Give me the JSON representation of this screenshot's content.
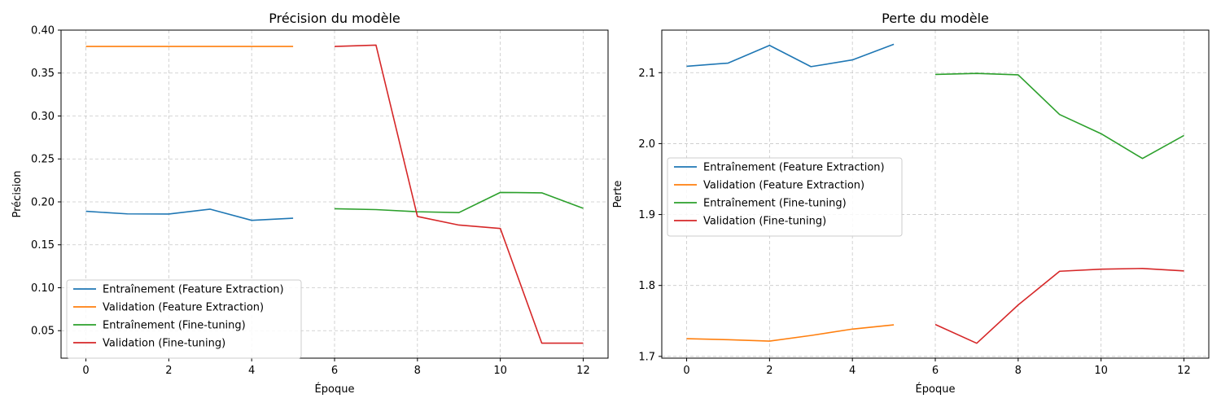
{
  "chart_data": [
    {
      "type": "line",
      "title": "Précision du modèle",
      "xlabel": "Époque",
      "ylabel": "Précision",
      "xlim": [
        -0.6,
        12.6
      ],
      "ylim": [
        0.018,
        0.4
      ],
      "xticks": [
        0,
        2,
        4,
        6,
        8,
        10,
        12
      ],
      "xtick_labels": [
        "0",
        "2",
        "4",
        "6",
        "8",
        "10",
        "12"
      ],
      "yticks": [
        0.05,
        0.1,
        0.15,
        0.2,
        0.25,
        0.3,
        0.35,
        0.4
      ],
      "ytick_labels": [
        "0.05",
        "0.10",
        "0.15",
        "0.20",
        "0.25",
        "0.30",
        "0.35",
        "0.40"
      ],
      "grid": true,
      "legend_position": "lower-left",
      "series": [
        {
          "name": "Entraînement (Feature Extraction)",
          "color": "#1f77b4",
          "x": [
            0,
            1,
            2,
            3,
            4,
            5
          ],
          "y": [
            0.189,
            0.186,
            0.1858,
            0.1915,
            0.1785,
            0.181
          ]
        },
        {
          "name": "Validation (Feature Extraction)",
          "color": "#ff7f0e",
          "x": [
            0,
            1,
            2,
            3,
            4,
            5
          ],
          "y": [
            0.381,
            0.381,
            0.381,
            0.381,
            0.381,
            0.381
          ]
        },
        {
          "name": "Entraînement (Fine-tuning)",
          "color": "#2ca02c",
          "x": [
            6,
            7,
            8,
            9,
            10,
            11,
            12
          ],
          "y": [
            0.192,
            0.191,
            0.1885,
            0.1875,
            0.211,
            0.2105,
            0.1925
          ]
        },
        {
          "name": "Validation (Fine-tuning)",
          "color": "#d62728",
          "x": [
            6,
            7,
            8,
            9,
            10,
            11,
            12
          ],
          "y": [
            0.381,
            0.3825,
            0.183,
            0.173,
            0.169,
            0.0355,
            0.0355
          ]
        }
      ]
    },
    {
      "type": "line",
      "title": "Perte du modèle",
      "xlabel": "Époque",
      "ylabel": "Perte",
      "xlim": [
        -0.6,
        12.6
      ],
      "ylim": [
        1.6975,
        2.16
      ],
      "xticks": [
        0,
        2,
        4,
        6,
        8,
        10,
        12
      ],
      "xtick_labels": [
        "0",
        "2",
        "4",
        "6",
        "8",
        "10",
        "12"
      ],
      "yticks": [
        1.7,
        1.8,
        1.9,
        2.0,
        2.1
      ],
      "ytick_labels": [
        "1.7",
        "1.8",
        "1.9",
        "2.0",
        "2.1"
      ],
      "grid": true,
      "legend_position": "center-left",
      "series": [
        {
          "name": "Entraînement (Feature Extraction)",
          "color": "#1f77b4",
          "x": [
            0,
            1,
            2,
            3,
            4,
            5
          ],
          "y": [
            2.109,
            2.1135,
            2.1385,
            2.1085,
            2.118,
            2.14
          ]
        },
        {
          "name": "Validation (Feature Extraction)",
          "color": "#ff7f0e",
          "x": [
            0,
            1,
            2,
            3,
            4,
            5
          ],
          "y": [
            1.725,
            1.7235,
            1.7215,
            1.7295,
            1.7385,
            1.7445
          ]
        },
        {
          "name": "Entraînement (Fine-tuning)",
          "color": "#2ca02c",
          "x": [
            6,
            7,
            8,
            9,
            10,
            11,
            12
          ],
          "y": [
            2.0975,
            2.099,
            2.097,
            2.041,
            2.014,
            1.979,
            2.0115
          ]
        },
        {
          "name": "Validation (Fine-tuning)",
          "color": "#d62728",
          "x": [
            6,
            7,
            8,
            9,
            10,
            11,
            12
          ],
          "y": [
            1.745,
            1.7185,
            1.7725,
            1.82,
            1.823,
            1.824,
            1.8205
          ]
        }
      ]
    }
  ]
}
